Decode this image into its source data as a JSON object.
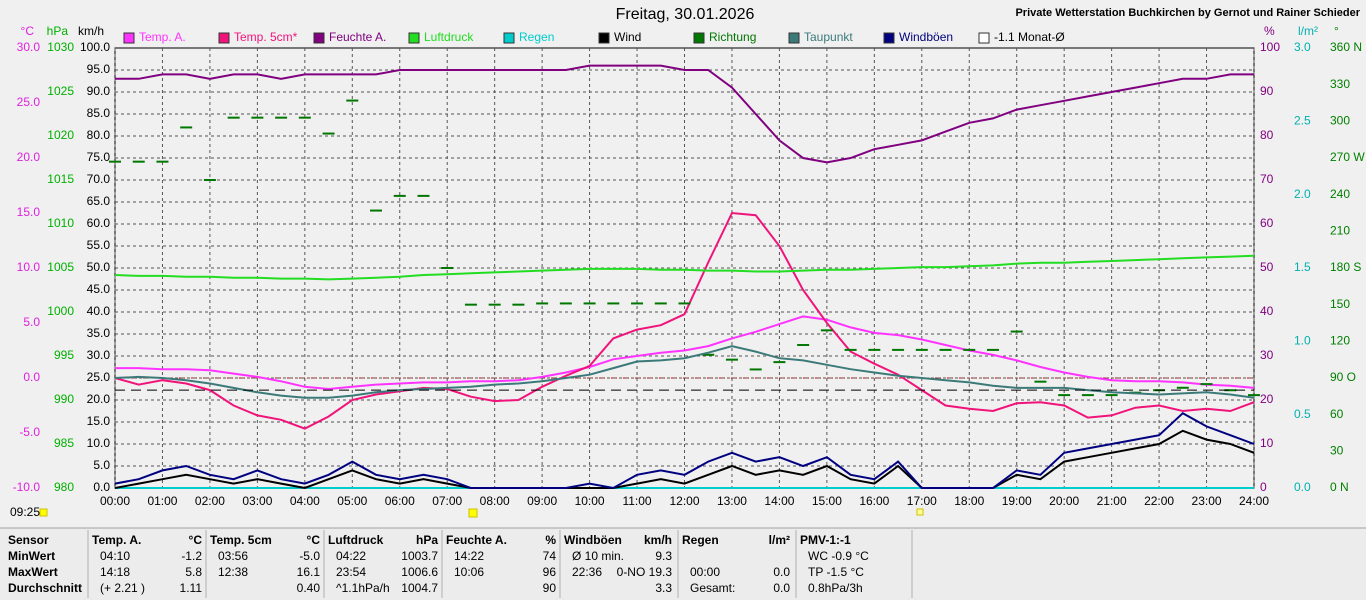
{
  "chart_data": {
    "type": "line",
    "title": "Freitag, 30.01.2026",
    "subtitle": "Private Wetterstation Buchkirchen by Gernot und Rainer Schieder",
    "time_label": "09:25",
    "xlim": [
      0,
      24
    ],
    "xticks": [
      {
        "value": 0,
        "label": "00:00"
      },
      {
        "value": 1,
        "label": "01:00"
      },
      {
        "value": 2,
        "label": "02:00"
      },
      {
        "value": 3,
        "label": "03:00"
      },
      {
        "value": 4,
        "label": "04:00"
      },
      {
        "value": 5,
        "label": "05:00"
      },
      {
        "value": 6,
        "label": "06:00"
      },
      {
        "value": 7,
        "label": "07:00"
      },
      {
        "value": 8,
        "label": "08:00"
      },
      {
        "value": 9,
        "label": "09:00"
      },
      {
        "value": 10,
        "label": "10:00"
      },
      {
        "value": 11,
        "label": "11:00"
      },
      {
        "value": 12,
        "label": "12:00"
      },
      {
        "value": 13,
        "label": "13:00"
      },
      {
        "value": 14,
        "label": "14:00"
      },
      {
        "value": 15,
        "label": "15:00"
      },
      {
        "value": 16,
        "label": "16:00"
      },
      {
        "value": 17,
        "label": "17:00"
      },
      {
        "value": 18,
        "label": "18:00"
      },
      {
        "value": 19,
        "label": "19:00"
      },
      {
        "value": 20,
        "label": "20:00"
      },
      {
        "value": 21,
        "label": "21:00"
      },
      {
        "value": 22,
        "label": "22:00"
      },
      {
        "value": 23,
        "label": "23:00"
      },
      {
        "value": 24,
        "label": "24:00"
      }
    ],
    "grid": true,
    "axes": [
      {
        "unit": "°C",
        "side": "left",
        "color": "#e020e0",
        "lim": [
          -10,
          30
        ],
        "ticks": [
          {
            "value": 30,
            "label": "30.0"
          },
          {
            "value": 25,
            "label": "25.0"
          },
          {
            "value": 20,
            "label": "20.0"
          },
          {
            "value": 15,
            "label": "15.0"
          },
          {
            "value": 10,
            "label": "10.0"
          },
          {
            "value": 5,
            "label": "5.0"
          },
          {
            "value": 0,
            "label": "0.0"
          },
          {
            "value": -5,
            "label": "-5.0"
          },
          {
            "value": -10,
            "label": "-10.0"
          }
        ]
      },
      {
        "unit": "hPa",
        "side": "left",
        "color": "#00b000",
        "lim": [
          980,
          1030
        ],
        "ticks": [
          1030,
          1025,
          1020,
          1015,
          1010,
          1005,
          1000,
          995,
          990,
          985,
          980
        ]
      },
      {
        "unit": "km/h",
        "side": "left",
        "color": "#000000",
        "grid": true,
        "lim": [
          0,
          100
        ],
        "ticks": [
          {
            "value": 100,
            "label": "100.0"
          },
          {
            "value": 95,
            "label": "95.0"
          },
          {
            "value": 90,
            "label": "90.0"
          },
          {
            "value": 85,
            "label": "85.0"
          },
          {
            "value": 80,
            "label": "80.0"
          },
          {
            "value": 75,
            "label": "75.0"
          },
          {
            "value": 70,
            "label": "70.0"
          },
          {
            "value": 65,
            "label": "65.0"
          },
          {
            "value": 60,
            "label": "60.0"
          },
          {
            "value": 55,
            "label": "55.0"
          },
          {
            "value": 50,
            "label": "50.0"
          },
          {
            "value": 45,
            "label": "45.0"
          },
          {
            "value": 40,
            "label": "40.0"
          },
          {
            "value": 35,
            "label": "35.0"
          },
          {
            "value": 30,
            "label": "30.0"
          },
          {
            "value": 25,
            "label": "25.0"
          },
          {
            "value": 20,
            "label": "20.0"
          },
          {
            "value": 15,
            "label": "15.0"
          },
          {
            "value": 10,
            "label": "10.0"
          },
          {
            "value": 5,
            "label": "5.0"
          },
          {
            "value": 0,
            "label": "0.0"
          }
        ]
      },
      {
        "unit": "%",
        "side": "right",
        "color": "#800080",
        "lim": [
          0,
          100
        ],
        "ticks": [
          100,
          90,
          80,
          70,
          60,
          50,
          40,
          30,
          20,
          10,
          0
        ]
      },
      {
        "unit": "l/m²",
        "side": "right",
        "color": "#00b0b0",
        "lim": [
          0,
          3
        ],
        "ticks": [
          {
            "value": 3,
            "label": "3.0"
          },
          2.5,
          {
            "value": 2,
            "label": "2.0"
          },
          1.5,
          {
            "value": 1,
            "label": "1.0"
          },
          0.5,
          {
            "value": 0,
            "label": "0.0"
          }
        ]
      },
      {
        "unit": "°",
        "side": "right",
        "color": "#008000",
        "lim": [
          0,
          360
        ],
        "ticks": [
          {
            "value": 360,
            "label": "360 N"
          },
          330,
          300,
          {
            "value": 270,
            "label": "270 W"
          },
          240,
          210,
          {
            "value": 180,
            "label": "180 S"
          },
          150,
          120,
          {
            "value": 90,
            "label": "90 O"
          },
          60,
          30,
          {
            "value": 0,
            "label": "0 N"
          }
        ]
      }
    ],
    "x": [
      0,
      0.5,
      1,
      1.5,
      2,
      2.5,
      3,
      3.5,
      4,
      4.5,
      5,
      5.5,
      6,
      6.5,
      7,
      7.5,
      8,
      8.5,
      9,
      9.5,
      10,
      10.5,
      11,
      11.5,
      12,
      12.5,
      13,
      13.5,
      14,
      14.5,
      15,
      15.5,
      16,
      16.5,
      17,
      17.5,
      18,
      18.5,
      19,
      19.5,
      20,
      20.5,
      21,
      21.5,
      22,
      22.5,
      23,
      23.5,
      24
    ],
    "series": [
      {
        "name": "Temp. A.",
        "color": "#ff33ff",
        "axis": 0,
        "values": [
          0.9,
          0.9,
          0.8,
          0.8,
          0.7,
          0.4,
          0.1,
          -0.3,
          -0.8,
          -1.0,
          -0.8,
          -0.6,
          -0.5,
          -0.4,
          -0.4,
          -0.3,
          -0.3,
          -0.2,
          0.1,
          0.5,
          1.0,
          1.7,
          2.0,
          2.3,
          2.5,
          2.9,
          3.6,
          4.2,
          4.9,
          5.6,
          5.3,
          4.6,
          4.1,
          3.9,
          3.5,
          3.0,
          2.5,
          2.1,
          1.6,
          1.0,
          0.5,
          0.1,
          -0.2,
          -0.3,
          -0.3,
          -0.4,
          -0.6,
          -0.7,
          -0.9
        ]
      },
      {
        "name": "Temp. 5cm*",
        "color": "#f0147a",
        "axis": 0,
        "values": [
          0.0,
          -0.6,
          -0.2,
          -0.5,
          -1.1,
          -2.5,
          -3.4,
          -3.8,
          -4.6,
          -3.5,
          -2.0,
          -1.5,
          -1.2,
          -0.9,
          -1.0,
          -1.7,
          -2.1,
          -2.0,
          -0.8,
          0.2,
          1.1,
          3.6,
          4.4,
          4.8,
          5.8,
          10.5,
          15.0,
          14.8,
          12.0,
          8.0,
          5.0,
          2.4,
          1.3,
          0.3,
          -1.1,
          -2.5,
          -2.8,
          -3.0,
          -2.3,
          -2.2,
          -2.5,
          -3.6,
          -3.4,
          -2.7,
          -2.5,
          -3.0,
          -2.8,
          -3.0,
          -2.2
        ]
      },
      {
        "name": "Feuchte A.",
        "color": "#800080",
        "axis": 3,
        "values": [
          93,
          93,
          94,
          94,
          93,
          94,
          94,
          93,
          94,
          94,
          94,
          94,
          95,
          95,
          95,
          95,
          95,
          95,
          95,
          95,
          96,
          96,
          96,
          96,
          95,
          95,
          91,
          85,
          79,
          75,
          74,
          75,
          77,
          78,
          79,
          81,
          83,
          84,
          86,
          87,
          88,
          89,
          90,
          91,
          92,
          93,
          93,
          94,
          94
        ]
      },
      {
        "name": "Luftdruck",
        "color": "#22dd22",
        "axis": 1,
        "values": [
          1004.2,
          1004.1,
          1004.1,
          1004.0,
          1004.0,
          1003.9,
          1003.9,
          1003.8,
          1003.8,
          1003.7,
          1003.8,
          1003.9,
          1004.0,
          1004.2,
          1004.3,
          1004.4,
          1004.5,
          1004.6,
          1004.7,
          1004.8,
          1004.9,
          1004.9,
          1004.9,
          1004.8,
          1004.8,
          1004.7,
          1004.7,
          1004.6,
          1004.6,
          1004.7,
          1004.8,
          1004.8,
          1004.9,
          1005.0,
          1005.1,
          1005.1,
          1005.2,
          1005.3,
          1005.5,
          1005.6,
          1005.6,
          1005.7,
          1005.8,
          1005.9,
          1006.0,
          1006.1,
          1006.2,
          1006.3,
          1006.4
        ]
      },
      {
        "name": "Regen",
        "color": "#00cccc",
        "axis": 4,
        "values": [
          0,
          0,
          0,
          0,
          0,
          0,
          0,
          0,
          0,
          0,
          0,
          0,
          0,
          0,
          0,
          0,
          0,
          0,
          0,
          0,
          0,
          0,
          0,
          0,
          0,
          0,
          0,
          0,
          0,
          0,
          0,
          0,
          0,
          0,
          0,
          0,
          0,
          0,
          0,
          0,
          0,
          0,
          0,
          0,
          0,
          0,
          0,
          0,
          0
        ]
      },
      {
        "name": "Wind",
        "color": "#000000",
        "axis": 2,
        "values": [
          0,
          1,
          2,
          3,
          2,
          1,
          2,
          1,
          0,
          2,
          4,
          2,
          1,
          2,
          1,
          0,
          0,
          0,
          0,
          0,
          0,
          0,
          1,
          2,
          1,
          3,
          5,
          3,
          4,
          3,
          5,
          2,
          1,
          5,
          0,
          0,
          0,
          0,
          3,
          2,
          6,
          7,
          8,
          9,
          10,
          13,
          11,
          10,
          8
        ]
      },
      {
        "name": "Richtung",
        "color": "#007700",
        "axis": 5,
        "style": "dash",
        "values": [
          267,
          267,
          267,
          295,
          252,
          303,
          303,
          303,
          303,
          290,
          317,
          227,
          239,
          239,
          180,
          150,
          150,
          150,
          151,
          151,
          151,
          151,
          151,
          151,
          151,
          109,
          105,
          97,
          103,
          117,
          129,
          113,
          113,
          113,
          113,
          113,
          113,
          113,
          128,
          87,
          76,
          76,
          76,
          78,
          80,
          82,
          85,
          80,
          76
        ]
      },
      {
        "name": "Taupunkt",
        "color": "#3c7a7a",
        "axis": 0,
        "values": [
          0.0,
          0.1,
          0.0,
          -0.2,
          -0.5,
          -0.9,
          -1.3,
          -1.6,
          -1.8,
          -1.8,
          -1.6,
          -1.3,
          -1.1,
          -1.0,
          -0.9,
          -0.8,
          -0.6,
          -0.5,
          -0.3,
          0.0,
          0.3,
          0.9,
          1.5,
          1.6,
          1.8,
          2.3,
          2.9,
          2.4,
          1.8,
          1.6,
          1.2,
          0.8,
          0.5,
          0.2,
          0.0,
          -0.2,
          -0.4,
          -0.7,
          -0.9,
          -0.9,
          -0.9,
          -1.1,
          -1.3,
          -1.4,
          -1.5,
          -1.4,
          -1.3,
          -1.5,
          -1.8
        ]
      },
      {
        "name": "Windböen",
        "color": "#000080",
        "axis": 2,
        "values": [
          1,
          2,
          4,
          5,
          3,
          2,
          4,
          2,
          1,
          3,
          6,
          3,
          2,
          3,
          2,
          0,
          0,
          0,
          0,
          0,
          1,
          0,
          3,
          4,
          3,
          6,
          8,
          6,
          7,
          5,
          7,
          3,
          2,
          6,
          0,
          0,
          0,
          0,
          4,
          3,
          8,
          9,
          10,
          11,
          12,
          17,
          14,
          12,
          10
        ]
      },
      {
        "name": "-1.1 Monat-Ø",
        "color": "#000000",
        "legend_color": "#ffffff",
        "axis": 0,
        "level": -1.1
      }
    ],
    "table": {
      "row_labels": [
        "Sensor",
        "MinWert",
        "MaxWert",
        "Durchschnitt"
      ],
      "columns": [
        {
          "header": "Temp. A.",
          "unit": "°C",
          "min": {
            "time": "04:10",
            "value": "-1.2"
          },
          "max": {
            "time": "14:18",
            "value": "5.8"
          },
          "avg": {
            "time": "(+ 2.21 )",
            "value": "1.11"
          }
        },
        {
          "header": "Temp. 5cm",
          "unit": "°C",
          "min": {
            "time": "03:56",
            "value": "-5.0"
          },
          "max": {
            "time": "12:38",
            "value": "16.1"
          },
          "avg": {
            "value": "0.40"
          }
        },
        {
          "header": "Luftdruck",
          "unit": "hPa",
          "min": {
            "time": "04:22",
            "value": "1003.7"
          },
          "max": {
            "time": "23:54",
            "value": "1006.6"
          },
          "avg": {
            "time": "^1.1hPa/h",
            "value": "1004.7"
          }
        },
        {
          "header": "Feuchte A.",
          "unit": "%",
          "min": {
            "time": "14:22",
            "value": "74"
          },
          "max": {
            "time": "10:06",
            "value": "96"
          },
          "avg": {
            "value": "90"
          }
        },
        {
          "header": "Windböen",
          "unit": "km/h",
          "min": {
            "time": "Ø 10 min.",
            "value": "9.3"
          },
          "max": {
            "time": "22:36",
            "value": "0-NO 19.3"
          },
          "avg": {
            "value": "3.3"
          }
        },
        {
          "header": "Regen",
          "unit": "l/m²",
          "max": {
            "time": "00:00",
            "value": "0.0"
          },
          "avg": {
            "time": "Gesamt:",
            "value": "0.0"
          }
        },
        {
          "header": "PMV-1:-1",
          "min": {
            "time": "WC -0.9 °C"
          },
          "max": {
            "time": "TP -1.5 °C"
          },
          "avg": {
            "time": "0.8hPa/3h"
          }
        }
      ]
    }
  }
}
